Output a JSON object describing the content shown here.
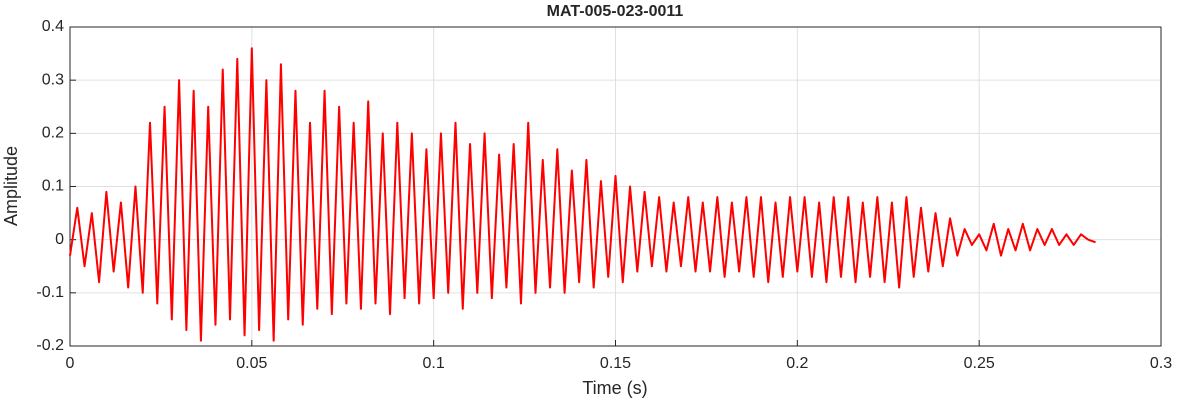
{
  "chart_data": {
    "type": "line",
    "title": "MAT-005-023-0011",
    "x_label": "Time (s)",
    "y_label": "Amplitude",
    "x": [
      0,
      0.002,
      0.004,
      0.006,
      0.008,
      0.01,
      0.012,
      0.014,
      0.016,
      0.018,
      0.02,
      0.022,
      0.024,
      0.026,
      0.028,
      0.03,
      0.032,
      0.034,
      0.036,
      0.038,
      0.04,
      0.042,
      0.044,
      0.046,
      0.048,
      0.05,
      0.052,
      0.054,
      0.056,
      0.058,
      0.06,
      0.062,
      0.064,
      0.066,
      0.068,
      0.07,
      0.072,
      0.074,
      0.076,
      0.078,
      0.08,
      0.082,
      0.084,
      0.086,
      0.088,
      0.09,
      0.092,
      0.094,
      0.096,
      0.098,
      0.1,
      0.102,
      0.104,
      0.106,
      0.108,
      0.11,
      0.112,
      0.114,
      0.116,
      0.118,
      0.12,
      0.122,
      0.124,
      0.126,
      0.128,
      0.13,
      0.132,
      0.134,
      0.136,
      0.138,
      0.14,
      0.142,
      0.144,
      0.146,
      0.148,
      0.15,
      0.152,
      0.154,
      0.156,
      0.158,
      0.16,
      0.162,
      0.164,
      0.166,
      0.168,
      0.17,
      0.172,
      0.174,
      0.176,
      0.178,
      0.18,
      0.182,
      0.184,
      0.186,
      0.188,
      0.19,
      0.192,
      0.194,
      0.196,
      0.198,
      0.2,
      0.202,
      0.204,
      0.206,
      0.208,
      0.21,
      0.212,
      0.214,
      0.216,
      0.218,
      0.22,
      0.222,
      0.224,
      0.226,
      0.228,
      0.23,
      0.232,
      0.234,
      0.236,
      0.238,
      0.24,
      0.242,
      0.244,
      0.246,
      0.248,
      0.25,
      0.252,
      0.254,
      0.256,
      0.258,
      0.26,
      0.262,
      0.264,
      0.266,
      0.268,
      0.27,
      0.272,
      0.274,
      0.276,
      0.278,
      0.28,
      0.282
    ],
    "series": [
      {
        "name": "signal",
        "color": "#ff0000",
        "values": [
          -0.03,
          0.06,
          -0.05,
          0.05,
          -0.08,
          0.09,
          -0.06,
          0.07,
          -0.09,
          0.1,
          -0.1,
          0.22,
          -0.12,
          0.25,
          -0.15,
          0.3,
          -0.17,
          0.28,
          -0.19,
          0.25,
          -0.16,
          0.32,
          -0.15,
          0.34,
          -0.18,
          0.36,
          -0.17,
          0.3,
          -0.19,
          0.33,
          -0.15,
          0.28,
          -0.16,
          0.22,
          -0.13,
          0.28,
          -0.14,
          0.25,
          -0.12,
          0.22,
          -0.13,
          0.26,
          -0.12,
          0.2,
          -0.14,
          0.22,
          -0.11,
          0.2,
          -0.12,
          0.17,
          -0.11,
          0.2,
          -0.1,
          0.22,
          -0.13,
          0.18,
          -0.1,
          0.2,
          -0.11,
          0.16,
          -0.09,
          0.18,
          -0.12,
          0.22,
          -0.1,
          0.15,
          -0.09,
          0.17,
          -0.1,
          0.13,
          -0.08,
          0.15,
          -0.09,
          0.11,
          -0.07,
          0.12,
          -0.08,
          0.1,
          -0.06,
          0.09,
          -0.05,
          0.08,
          -0.06,
          0.07,
          -0.05,
          0.08,
          -0.06,
          0.07,
          -0.06,
          0.08,
          -0.07,
          0.07,
          -0.06,
          0.08,
          -0.07,
          0.08,
          -0.08,
          0.07,
          -0.07,
          0.08,
          -0.06,
          0.08,
          -0.07,
          0.07,
          -0.08,
          0.08,
          -0.07,
          0.08,
          -0.08,
          0.07,
          -0.07,
          0.08,
          -0.08,
          0.07,
          -0.09,
          0.08,
          -0.07,
          0.06,
          -0.06,
          0.05,
          -0.05,
          0.04,
          -0.03,
          0.02,
          -0.01,
          0.01,
          -0.02,
          0.03,
          -0.03,
          0.02,
          -0.02,
          0.03,
          -0.02,
          0.02,
          -0.01,
          0.02,
          -0.01,
          0.01,
          -0.01,
          0.01,
          0,
          -0.005
        ]
      }
    ],
    "xlim": [
      0,
      0.3
    ],
    "xticks": [
      0,
      0.05,
      0.1,
      0.15,
      0.2,
      0.25,
      0.3
    ],
    "ylim": [
      -0.2,
      0.4
    ],
    "yticks": [
      -0.2,
      -0.1,
      0,
      0.1,
      0.2,
      0.3,
      0.4
    ],
    "grid": true
  }
}
